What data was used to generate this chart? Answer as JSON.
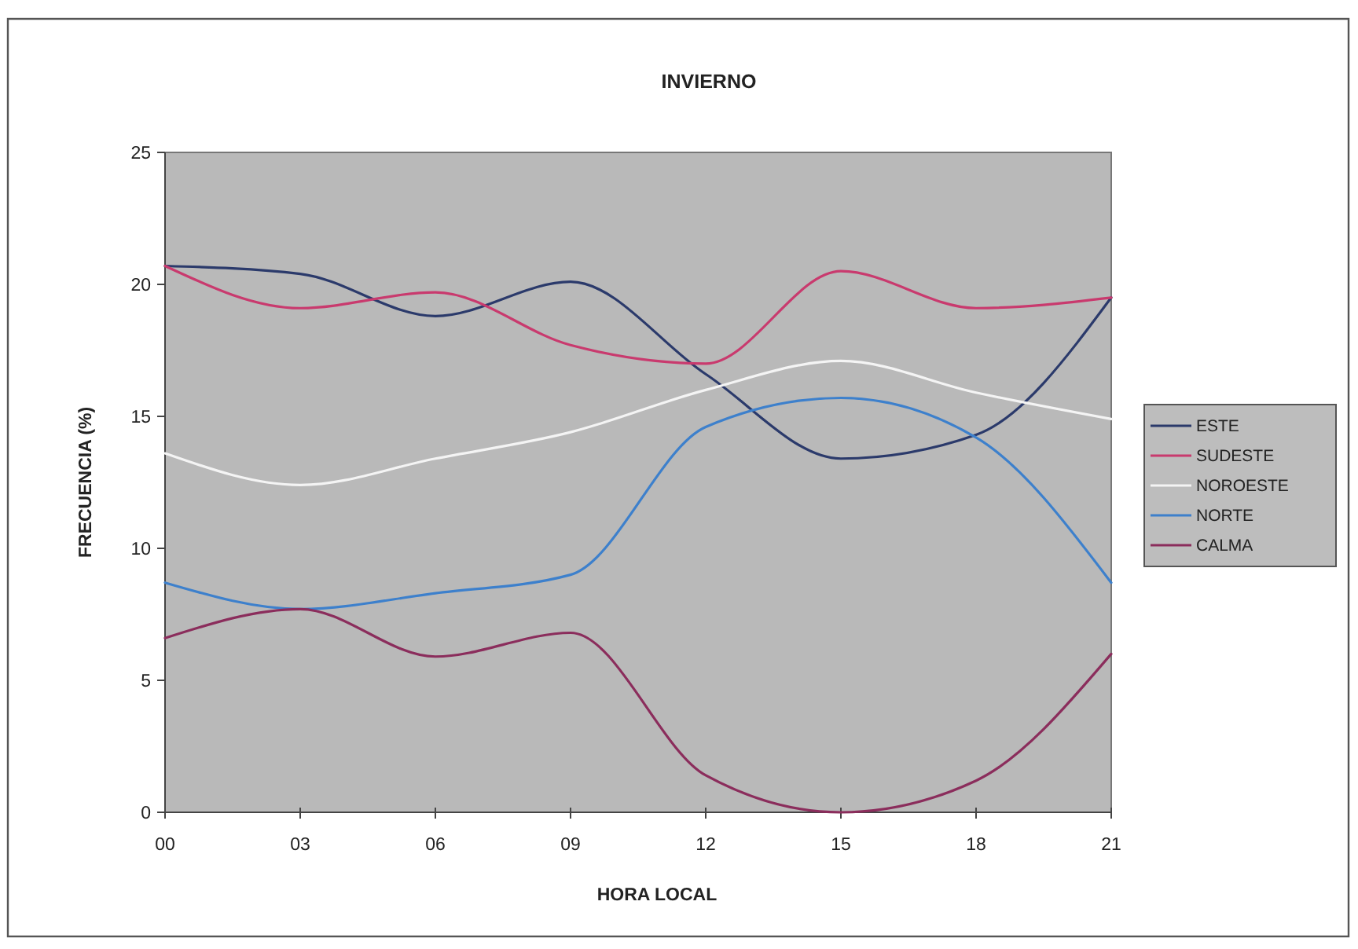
{
  "chart_data": {
    "type": "line",
    "title": "INVIERNO",
    "xlabel": "HORA LOCAL",
    "ylabel": "FRECUENCIA (%)",
    "categories": [
      "00",
      "03",
      "06",
      "09",
      "12",
      "15",
      "18",
      "21"
    ],
    "series": [
      {
        "name": "ESTE",
        "color": "#2b3a6b",
        "values": [
          20.7,
          20.4,
          18.8,
          20.1,
          16.6,
          13.4,
          14.3,
          19.5
        ]
      },
      {
        "name": "SUDESTE",
        "color": "#c93a6e",
        "values": [
          20.7,
          19.1,
          19.7,
          17.7,
          17.0,
          20.5,
          19.1,
          19.5
        ]
      },
      {
        "name": "NOROESTE",
        "color": "#f4f4f4",
        "values": [
          13.6,
          12.4,
          13.4,
          14.4,
          16.0,
          17.1,
          15.9,
          14.9
        ]
      },
      {
        "name": "NORTE",
        "color": "#3d80cc",
        "values": [
          8.7,
          7.7,
          8.3,
          9.0,
          14.6,
          15.7,
          14.2,
          8.7
        ]
      },
      {
        "name": "CALMA",
        "color": "#8b2d5c",
        "values": [
          6.6,
          7.7,
          5.9,
          6.8,
          1.4,
          0,
          1.2,
          6.0
        ]
      }
    ],
    "ylim": [
      0,
      25
    ],
    "yticks": [
      0,
      5,
      10,
      15,
      20,
      25
    ],
    "legend": "right"
  }
}
